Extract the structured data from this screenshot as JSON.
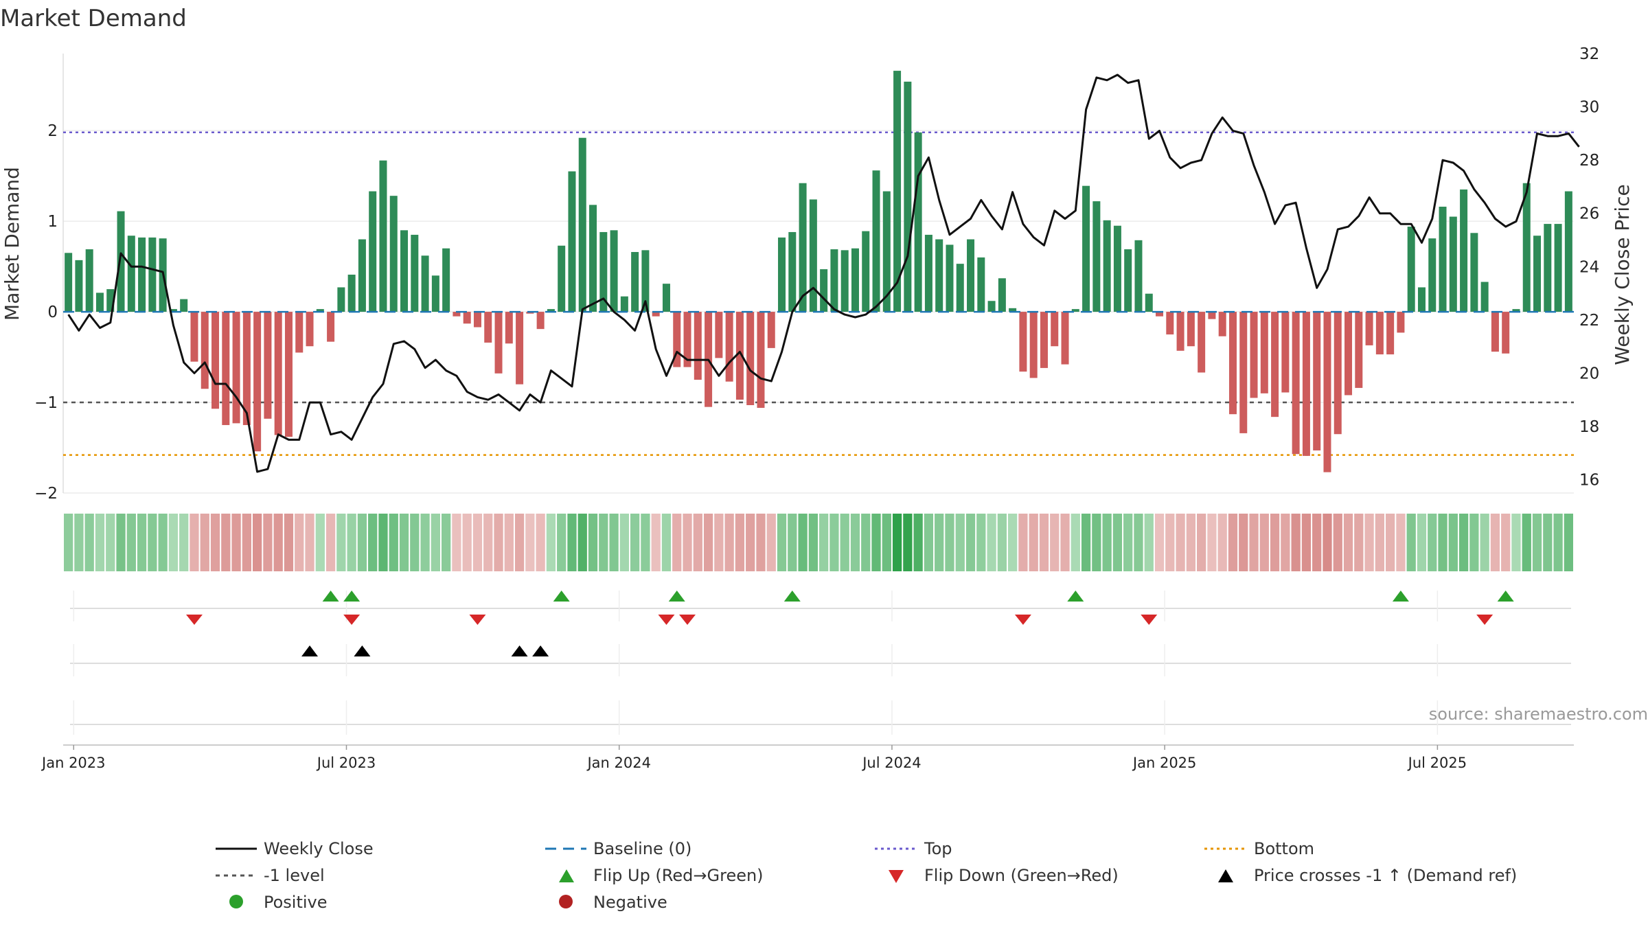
{
  "colors": {
    "positive_bar": "#2e8b57",
    "negative_bar": "#cd5c5c",
    "price_line": "#111111",
    "baseline": "#1f77b4",
    "top": "#6a5acd",
    "minus_one": "#555555",
    "bottom": "#e69500",
    "flip_up": "#2ca02c",
    "flip_down": "#d62728",
    "cross": "#000000",
    "positive_dot": "#2ca02c",
    "negative_dot": "#b22222"
  },
  "chart_data": {
    "type": "bar",
    "title": "Market Demand",
    "ylabel": "Market Demand",
    "y2label": "Weekly Close Price",
    "ylim": [
      -2.0,
      2.85
    ],
    "y2lim": [
      15.5,
      32.0
    ],
    "yticks": [
      -2,
      -1,
      0,
      1,
      2
    ],
    "ytick_labels": [
      "−2",
      "−1",
      "0",
      "1",
      "2"
    ],
    "y2ticks": [
      16,
      18,
      20,
      22,
      24,
      26,
      28,
      30,
      32
    ],
    "xtick_labels": [
      "Jan 2023",
      "Jul 2023",
      "Jan 2024",
      "Jul 2024",
      "Jan 2025",
      "Jul 2025"
    ],
    "xtick_weeks": [
      1,
      27,
      53,
      79,
      105,
      131
    ],
    "top_level": 1.98,
    "bottom_level": -1.58,
    "minus_one_level": -1.0,
    "demand": [
      0.65,
      0.57,
      0.69,
      0.21,
      0.25,
      1.11,
      0.84,
      0.82,
      0.82,
      0.81,
      0.03,
      0.14,
      -0.55,
      -0.85,
      -1.07,
      -1.25,
      -1.23,
      -1.25,
      -1.54,
      -1.18,
      -1.36,
      -1.38,
      -0.45,
      -0.38,
      0.03,
      -0.33,
      0.27,
      0.41,
      0.8,
      1.33,
      1.67,
      1.28,
      0.9,
      0.85,
      0.62,
      0.4,
      0.7,
      -0.05,
      -0.13,
      -0.17,
      -0.34,
      -0.68,
      -0.35,
      -0.8,
      -0.02,
      -0.19,
      0.03,
      0.73,
      1.55,
      1.92,
      1.18,
      0.88,
      0.9,
      0.17,
      0.66,
      0.68,
      -0.05,
      0.31,
      -0.61,
      -0.61,
      -0.75,
      -1.05,
      -0.51,
      -0.77,
      -0.97,
      -1.03,
      -1.06,
      -0.4,
      0.82,
      0.88,
      1.42,
      1.24,
      0.47,
      0.69,
      0.68,
      0.7,
      0.89,
      1.56,
      1.33,
      2.66,
      2.54,
      1.98,
      0.85,
      0.8,
      0.74,
      0.53,
      0.8,
      0.6,
      0.12,
      0.37,
      0.04,
      -0.66,
      -0.73,
      -0.62,
      -0.38,
      -0.58,
      0.03,
      1.39,
      1.22,
      1.01,
      0.95,
      0.69,
      0.79,
      0.2,
      -0.05,
      -0.25,
      -0.43,
      -0.38,
      -0.67,
      -0.08,
      -0.27,
      -1.13,
      -1.34,
      -0.95,
      -0.9,
      -1.16,
      -0.89,
      -1.57,
      -1.59,
      -1.53,
      -1.77,
      -1.35,
      -0.92,
      -0.84,
      -0.37,
      -0.47,
      -0.47,
      -0.23,
      0.94,
      0.27,
      0.81,
      1.16,
      1.05,
      1.35,
      0.87,
      0.33,
      -0.44,
      -0.46,
      0.03,
      1.42,
      0.84,
      0.97,
      0.97,
      1.33
    ],
    "weekly_close": [
      22.2,
      21.6,
      22.2,
      21.7,
      21.9,
      24.5,
      24.0,
      24.0,
      23.9,
      23.8,
      21.8,
      20.4,
      20.0,
      20.4,
      19.6,
      19.6,
      19.1,
      18.5,
      16.3,
      16.4,
      17.7,
      17.5,
      17.5,
      18.9,
      18.9,
      17.7,
      17.8,
      17.5,
      18.3,
      19.1,
      19.6,
      21.1,
      21.2,
      20.9,
      20.2,
      20.5,
      20.1,
      19.9,
      19.3,
      19.1,
      19.0,
      19.2,
      18.9,
      18.6,
      19.2,
      18.9,
      20.1,
      19.8,
      19.5,
      22.4,
      22.6,
      22.8,
      22.3,
      22.0,
      21.6,
      22.7,
      20.9,
      19.9,
      20.8,
      20.5,
      20.5,
      20.5,
      19.9,
      20.4,
      20.8,
      20.1,
      19.8,
      19.7,
      20.8,
      22.3,
      22.9,
      23.2,
      22.8,
      22.4,
      22.2,
      22.1,
      22.2,
      22.5,
      22.9,
      23.4,
      24.4,
      27.4,
      28.1,
      26.5,
      25.2,
      25.5,
      25.8,
      26.5,
      25.9,
      25.4,
      26.8,
      25.6,
      25.1,
      24.8,
      26.1,
      25.8,
      26.1,
      29.9,
      31.1,
      31.0,
      31.2,
      30.9,
      31.0,
      28.8,
      29.1,
      28.1,
      27.7,
      27.9,
      28.0,
      29.0,
      29.6,
      29.1,
      29.0,
      27.8,
      26.8,
      25.6,
      26.3,
      26.4,
      24.7,
      23.2,
      23.9,
      25.4,
      25.5,
      25.9,
      26.6,
      26.0,
      26.0,
      25.6,
      25.6,
      24.9,
      25.8,
      28.0,
      27.9,
      27.6,
      26.9,
      26.4,
      25.8,
      25.5,
      25.7,
      26.8,
      29.0,
      28.9,
      28.9,
      29.0,
      28.5
    ],
    "flip_up_weeks": [
      25.5,
      27.5,
      47.5,
      58.5,
      69.5,
      96.5,
      127.5,
      137.5
    ],
    "flip_down_weeks": [
      12.5,
      27.5,
      39.5,
      57.5,
      59.5,
      91.5,
      103.5,
      135.5
    ],
    "cross_weeks": [
      23.5,
      28.5,
      43.5,
      45.5
    ]
  },
  "legend": {
    "weekly_close": "Weekly Close",
    "baseline": "Baseline (0)",
    "top": "Top",
    "bottom": "Bottom",
    "minus_one": "-1 level",
    "flip_up": "Flip Up (Red→Green)",
    "flip_down": "Flip Down (Green→Red)",
    "price_cross": "Price crosses -1 ↑ (Demand ref)",
    "positive": "Positive",
    "negative": "Negative"
  },
  "source": "source: sharemaestro.com"
}
